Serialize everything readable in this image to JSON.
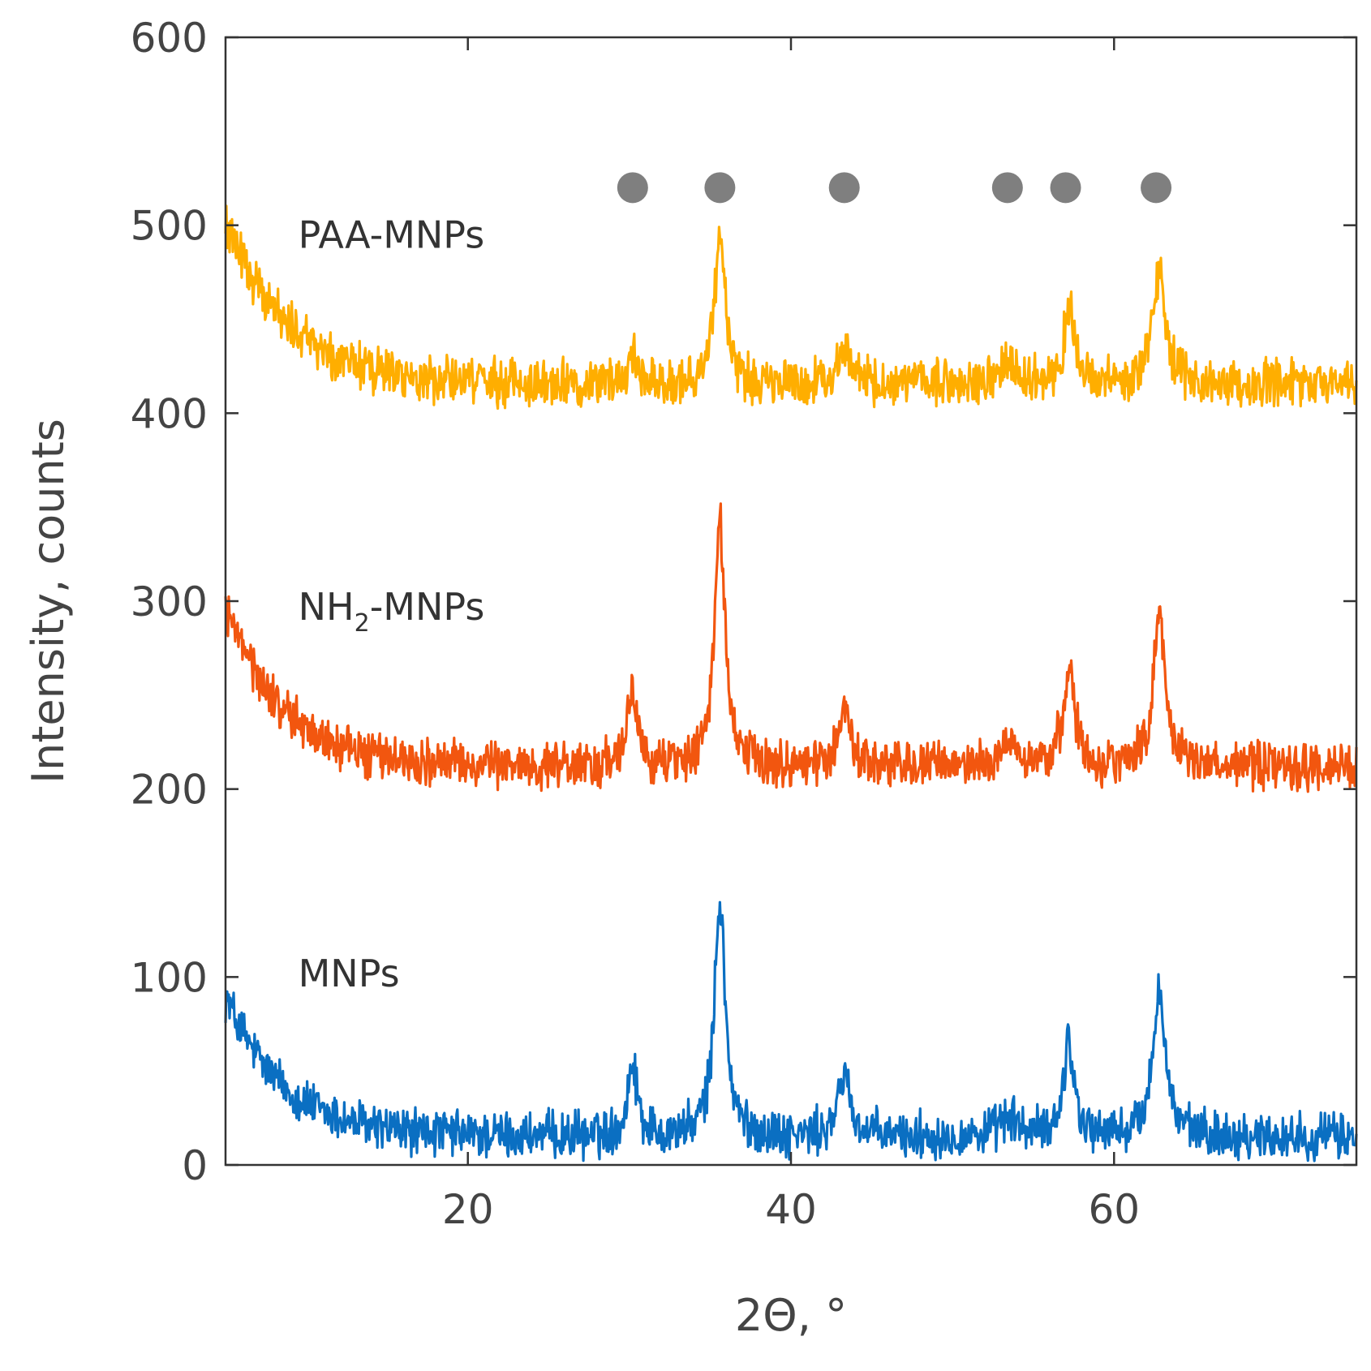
{
  "chart_data": {
    "type": "line",
    "title": "",
    "xlabel": "2Θ, °",
    "ylabel": "Intensity, counts",
    "xlim": [
      5,
      75
    ],
    "ylim": [
      0,
      600
    ],
    "x_ticks": [
      20,
      40,
      60
    ],
    "y_ticks": [
      0,
      100,
      200,
      300,
      400,
      500,
      600
    ],
    "grid": false,
    "legend": "inline labels",
    "peak_marker_positions": [
      30.2,
      35.6,
      43.3,
      53.4,
      57.0,
      62.6
    ],
    "peak_marker_y": 520,
    "series": [
      {
        "name": "MNPs",
        "color": "#0a6fc2",
        "label_x": 9.5,
        "label_y": 95,
        "baseline": 15,
        "decay": {
          "amplitude": 75,
          "scale": 3.5
        },
        "noise": 10,
        "peaks": [
          {
            "x": 30.2,
            "height": 40,
            "width": 0.35
          },
          {
            "x": 35.6,
            "height": 125,
            "width": 0.4
          },
          {
            "x": 43.3,
            "height": 35,
            "width": 0.4
          },
          {
            "x": 53.5,
            "height": 10,
            "width": 0.6
          },
          {
            "x": 57.2,
            "height": 50,
            "width": 0.4
          },
          {
            "x": 62.8,
            "height": 80,
            "width": 0.45
          }
        ]
      },
      {
        "name": "NH2-MNPs",
        "name_main": "NH",
        "name_sub": "2",
        "name_rest": "-MNPs",
        "color": "#f2560f",
        "label_x": 9.5,
        "label_y": 290,
        "baseline": 212,
        "decay": {
          "amplitude": 85,
          "scale": 3.5
        },
        "noise": 10,
        "peaks": [
          {
            "x": 30.2,
            "height": 40,
            "width": 0.35
          },
          {
            "x": 35.6,
            "height": 128,
            "width": 0.4
          },
          {
            "x": 43.3,
            "height": 33,
            "width": 0.4
          },
          {
            "x": 53.5,
            "height": 12,
            "width": 0.6
          },
          {
            "x": 57.2,
            "height": 55,
            "width": 0.4
          },
          {
            "x": 62.8,
            "height": 80,
            "width": 0.45
          }
        ]
      },
      {
        "name": "PAA-MNPs",
        "color": "#ffae00",
        "label_x": 9.5,
        "label_y": 488,
        "baseline": 415,
        "decay": {
          "amplitude": 85,
          "scale": 4.0
        },
        "noise": 10,
        "peaks": [
          {
            "x": 30.2,
            "height": 18,
            "width": 0.4
          },
          {
            "x": 35.6,
            "height": 80,
            "width": 0.4
          },
          {
            "x": 43.3,
            "height": 22,
            "width": 0.45
          },
          {
            "x": 53.5,
            "height": 10,
            "width": 0.6
          },
          {
            "x": 57.2,
            "height": 40,
            "width": 0.4
          },
          {
            "x": 62.8,
            "height": 62,
            "width": 0.45
          }
        ]
      }
    ]
  }
}
